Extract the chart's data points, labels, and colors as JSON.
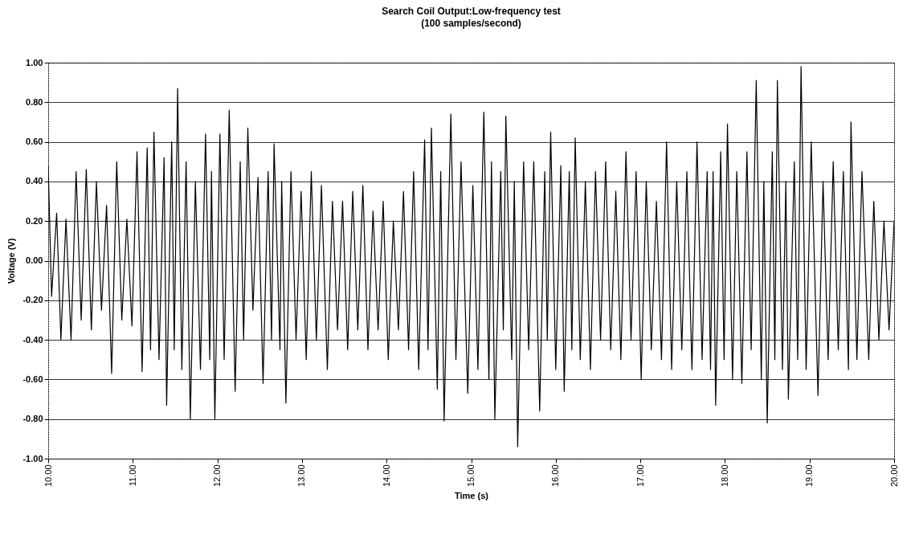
{
  "chart_data": {
    "type": "line",
    "title": "Search Coil Output:Low-frequency test",
    "subtitle": "(100 samples/second)",
    "xlabel": "Time (s)",
    "ylabel": "Voltage (V)",
    "xlim": [
      10,
      20
    ],
    "xticks": [
      {
        "value": 10,
        "label": "10.00"
      },
      {
        "value": 11,
        "label": "11.00"
      },
      {
        "value": 12,
        "label": "12.00"
      },
      {
        "value": 13,
        "label": "13.00"
      },
      {
        "value": 14,
        "label": "14.00"
      },
      {
        "value": 15,
        "label": "15.00"
      },
      {
        "value": 16,
        "label": "16.00"
      },
      {
        "value": 17,
        "label": "17.00"
      },
      {
        "value": 18,
        "label": "18.00"
      },
      {
        "value": 19,
        "label": "19.00"
      },
      {
        "value": 20,
        "label": "20.00"
      }
    ],
    "ylim": [
      -1,
      1
    ],
    "yticks": [
      {
        "value": -1,
        "label": "-1.00"
      },
      {
        "value": -0.8,
        "label": "-0.80"
      },
      {
        "value": -0.6,
        "label": "-0.60"
      },
      {
        "value": -0.4,
        "label": "-0.40"
      },
      {
        "value": -0.2,
        "label": "-0.20"
      },
      {
        "value": 0,
        "label": "0.00"
      },
      {
        "value": 0.2,
        "label": "0.20"
      },
      {
        "value": 0.4,
        "label": "0.40"
      },
      {
        "value": 0.6,
        "label": "0.60"
      },
      {
        "value": 0.8,
        "label": "0.80"
      },
      {
        "value": 1,
        "label": "1.00"
      }
    ],
    "grid": "y",
    "marker": "none",
    "line_style": "solid",
    "x": [
      10.0,
      10.04,
      10.1,
      10.15,
      10.21,
      10.27,
      10.33,
      10.39,
      10.45,
      10.51,
      10.57,
      10.63,
      10.69,
      10.75,
      10.81,
      10.87,
      10.93,
      10.99,
      11.05,
      11.11,
      11.17,
      11.21,
      11.25,
      11.31,
      11.37,
      11.4,
      11.46,
      11.49,
      11.53,
      11.58,
      11.63,
      11.68,
      11.74,
      11.8,
      11.86,
      11.91,
      11.93,
      11.97,
      12.03,
      12.08,
      12.14,
      12.21,
      12.27,
      12.31,
      12.36,
      12.42,
      12.48,
      12.54,
      12.6,
      12.64,
      12.67,
      12.74,
      12.76,
      12.81,
      12.87,
      12.93,
      12.99,
      13.05,
      13.11,
      13.17,
      13.23,
      13.3,
      13.36,
      13.42,
      13.48,
      13.54,
      13.6,
      13.66,
      13.72,
      13.78,
      13.84,
      13.9,
      13.96,
      14.02,
      14.08,
      14.14,
      14.2,
      14.26,
      14.32,
      14.38,
      14.45,
      14.49,
      14.53,
      14.6,
      14.64,
      14.68,
      14.76,
      14.82,
      14.88,
      14.96,
      15.02,
      15.08,
      15.15,
      15.21,
      15.24,
      15.28,
      15.35,
      15.38,
      15.41,
      15.48,
      15.51,
      15.55,
      15.62,
      15.68,
      15.74,
      15.81,
      15.87,
      15.9,
      15.94,
      16.0,
      16.06,
      16.1,
      16.16,
      16.19,
      16.23,
      16.29,
      16.35,
      16.41,
      16.47,
      16.53,
      16.59,
      16.65,
      16.71,
      16.77,
      16.83,
      16.89,
      16.95,
      17.01,
      17.07,
      17.13,
      17.19,
      17.25,
      17.31,
      17.37,
      17.43,
      17.49,
      17.55,
      17.61,
      17.67,
      17.73,
      17.79,
      17.83,
      17.86,
      17.89,
      17.95,
      17.99,
      18.03,
      18.09,
      18.14,
      18.2,
      18.26,
      18.31,
      18.37,
      18.43,
      18.46,
      18.5,
      18.56,
      18.59,
      18.62,
      18.68,
      18.72,
      18.75,
      18.82,
      18.86,
      18.9,
      18.96,
      19.02,
      19.1,
      19.16,
      19.22,
      19.28,
      19.34,
      19.4,
      19.46,
      19.49,
      19.56,
      19.62,
      19.7,
      19.76,
      19.82,
      19.88,
      19.94,
      20.0
    ],
    "series": [
      {
        "color": "#000000",
        "values": [
          0.48,
          -0.18,
          0.24,
          -0.4,
          0.21,
          -0.4,
          0.45,
          -0.3,
          0.46,
          -0.35,
          0.4,
          -0.25,
          0.28,
          -0.57,
          0.5,
          -0.3,
          0.21,
          -0.33,
          0.55,
          -0.56,
          0.57,
          -0.45,
          0.65,
          -0.5,
          0.52,
          -0.73,
          0.6,
          -0.45,
          0.87,
          -0.55,
          0.5,
          -0.8,
          0.4,
          -0.55,
          0.64,
          -0.5,
          0.45,
          -0.8,
          0.64,
          -0.5,
          0.76,
          -0.66,
          0.5,
          -0.4,
          0.67,
          -0.25,
          0.42,
          -0.62,
          0.45,
          -0.4,
          0.59,
          -0.45,
          0.4,
          -0.72,
          0.45,
          -0.4,
          0.35,
          -0.5,
          0.45,
          -0.4,
          0.38,
          -0.55,
          0.3,
          -0.35,
          0.3,
          -0.45,
          0.35,
          -0.35,
          0.38,
          -0.45,
          0.25,
          -0.35,
          0.3,
          -0.5,
          0.2,
          -0.35,
          0.35,
          -0.45,
          0.45,
          -0.55,
          0.61,
          -0.45,
          0.67,
          -0.65,
          0.45,
          -0.81,
          0.74,
          -0.5,
          0.5,
          -0.67,
          0.38,
          -0.55,
          0.75,
          -0.6,
          0.5,
          -0.8,
          0.45,
          -0.35,
          0.73,
          -0.5,
          0.4,
          -0.94,
          0.5,
          -0.45,
          0.5,
          -0.76,
          0.45,
          -0.4,
          0.65,
          -0.55,
          0.48,
          -0.66,
          0.45,
          -0.45,
          0.62,
          -0.5,
          0.4,
          -0.55,
          0.45,
          -0.4,
          0.5,
          -0.45,
          0.35,
          -0.5,
          0.55,
          -0.4,
          0.45,
          -0.6,
          0.4,
          -0.45,
          0.3,
          -0.5,
          0.6,
          -0.55,
          0.4,
          -0.45,
          0.45,
          -0.55,
          0.6,
          -0.5,
          0.45,
          -0.55,
          0.45,
          -0.73,
          0.55,
          -0.5,
          0.69,
          -0.6,
          0.45,
          -0.62,
          0.55,
          -0.45,
          0.91,
          -0.6,
          0.4,
          -0.82,
          0.55,
          -0.5,
          0.91,
          -0.55,
          0.4,
          -0.7,
          0.5,
          -0.5,
          0.98,
          -0.55,
          0.6,
          -0.68,
          0.4,
          -0.5,
          0.5,
          -0.45,
          0.45,
          -0.55,
          0.7,
          -0.5,
          0.45,
          -0.5,
          0.3,
          -0.4,
          0.2,
          -0.35,
          0.2
        ]
      }
    ]
  }
}
